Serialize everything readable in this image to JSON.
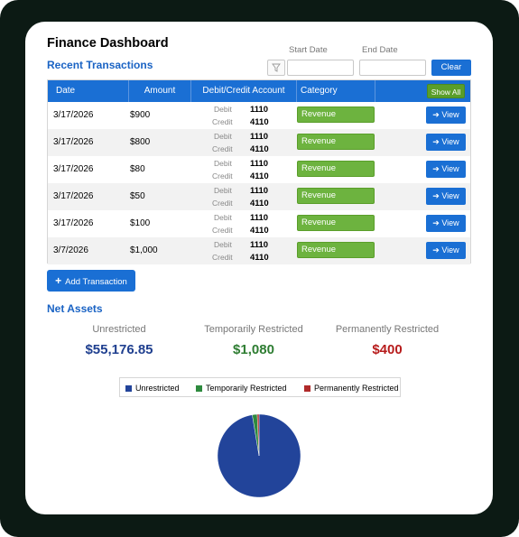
{
  "title": "Finance Dashboard",
  "recent_transactions": {
    "heading": "Recent Transactions",
    "filters": {
      "start_date_label": "Start Date",
      "end_date_label": "End Date",
      "start_date_value": "",
      "end_date_value": "",
      "clear_label": "Clear",
      "filter_icon": "filter-icon"
    },
    "columns": [
      "Date",
      "Amount",
      "Debit/Credit Account",
      "Category"
    ],
    "show_all_label": "Show All",
    "debit_label": "Debit",
    "credit_label": "Credit",
    "view_label": "➔ View",
    "rows": [
      {
        "date": "3/17/2026",
        "amount": "$900",
        "debit": "1110",
        "credit": "4110",
        "category": "Revenue"
      },
      {
        "date": "3/17/2026",
        "amount": "$800",
        "debit": "1110",
        "credit": "4110",
        "category": "Revenue"
      },
      {
        "date": "3/17/2026",
        "amount": "$80",
        "debit": "1110",
        "credit": "4110",
        "category": "Revenue"
      },
      {
        "date": "3/17/2026",
        "amount": "$50",
        "debit": "1110",
        "credit": "4110",
        "category": "Revenue"
      },
      {
        "date": "3/17/2026",
        "amount": "$100",
        "debit": "1110",
        "credit": "4110",
        "category": "Revenue"
      },
      {
        "date": "3/7/2026",
        "amount": "$1,000",
        "debit": "1110",
        "credit": "4110",
        "category": "Revenue"
      }
    ],
    "add_label": "Add Transaction"
  },
  "net_assets": {
    "heading": "Net Assets",
    "items": [
      {
        "label": "Unrestricted",
        "value": "$55,176.85",
        "color": "#1f3f8f"
      },
      {
        "label": "Temporarily Restricted",
        "value": "$1,080",
        "color": "#2e7d32"
      },
      {
        "label": "Permanently Restricted",
        "value": "$400",
        "color": "#b71c1c"
      }
    ]
  },
  "chart_data": {
    "type": "pie",
    "categories": [
      "Unrestricted",
      "Temporarily Restricted",
      "Permanently Restricted"
    ],
    "values": [
      55176.85,
      1080,
      400
    ],
    "colors": [
      "#22449a",
      "#2e8a3e",
      "#b02a2a"
    ],
    "legend": "top"
  }
}
